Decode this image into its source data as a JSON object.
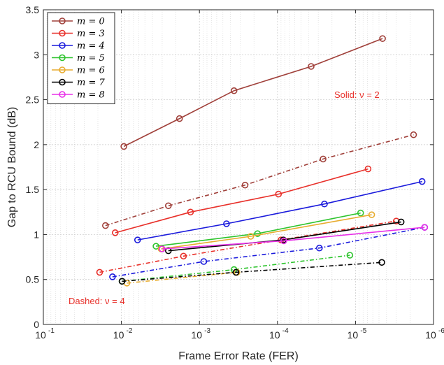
{
  "chart_data": {
    "type": "line",
    "xlabel": "Frame Error Rate (FER)",
    "ylabel": "Gap to RCU Bound (dB)",
    "x_scale": "log",
    "x_reversed": true,
    "xlim": [
      0.1,
      1e-06
    ],
    "ylim": [
      0,
      3.5
    ],
    "x_ticks": [
      {
        "value": 0.1,
        "label": "10"
      },
      {
        "value": 0.01,
        "label": "10"
      },
      {
        "value": 0.001,
        "label": "10"
      },
      {
        "value": 0.0001,
        "label": "10"
      },
      {
        "value": 1e-05,
        "label": "10"
      },
      {
        "value": 1e-06,
        "label": "10"
      }
    ],
    "x_tick_exponents": [
      "-1",
      "-2",
      "-3",
      "-4",
      "-5",
      "-6"
    ],
    "y_ticks": [
      {
        "value": 0,
        "label": "0"
      },
      {
        "value": 0.5,
        "label": "0.5"
      },
      {
        "value": 1,
        "label": "1"
      },
      {
        "value": 1.5,
        "label": "1.5"
      },
      {
        "value": 2,
        "label": "2"
      },
      {
        "value": 2.5,
        "label": "2.5"
      },
      {
        "value": 3,
        "label": "3"
      },
      {
        "value": 3.5,
        "label": "3.5"
      }
    ],
    "grid": true,
    "legend_position": "top-left",
    "legend": [
      {
        "label": "m = 0",
        "color": "#a0403a"
      },
      {
        "label": "m = 3",
        "color": "#e8302a"
      },
      {
        "label": "m = 4",
        "color": "#1a1adc"
      },
      {
        "label": "m = 5",
        "color": "#2ec42e"
      },
      {
        "label": "m = 6",
        "color": "#e8ac2e"
      },
      {
        "label": "m = 7",
        "color": "#000000"
      },
      {
        "label": "m = 8",
        "color": "#e830e8"
      }
    ],
    "annotations": [
      {
        "text": "Solid: ν = 2",
        "color": "#e8302a"
      },
      {
        "text": "Dashed: ν = 4",
        "color": "#e8302a"
      }
    ],
    "series": [
      {
        "m": 0,
        "nu": 2,
        "style": "solid",
        "color": "#a0403a",
        "x": [
          0.0093,
          0.0018,
          0.00036,
          3.7e-05,
          4.5e-06
        ],
        "y": [
          1.98,
          2.29,
          2.6,
          2.87,
          3.18
        ]
      },
      {
        "m": 0,
        "nu": 4,
        "style": "dashed",
        "color": "#a0403a",
        "x": [
          0.016,
          0.0025,
          0.00026,
          2.6e-05,
          1.8e-06
        ],
        "y": [
          1.1,
          1.32,
          1.55,
          1.84,
          2.11
        ]
      },
      {
        "m": 3,
        "nu": 2,
        "style": "solid",
        "color": "#e8302a",
        "x": [
          0.012,
          0.0013,
          9.7e-05,
          6.9e-06
        ],
        "y": [
          1.02,
          1.25,
          1.45,
          1.73
        ]
      },
      {
        "m": 3,
        "nu": 4,
        "style": "dashed",
        "color": "#e8302a",
        "x": [
          0.019,
          0.0016,
          9e-05,
          3e-06
        ],
        "y": [
          0.58,
          0.76,
          0.94,
          1.15
        ]
      },
      {
        "m": 4,
        "nu": 2,
        "style": "solid",
        "color": "#1a1adc",
        "x": [
          0.0062,
          0.00045,
          2.5e-05,
          1.4e-06
        ],
        "y": [
          0.94,
          1.12,
          1.34,
          1.59
        ]
      },
      {
        "m": 4,
        "nu": 4,
        "style": "dashed",
        "color": "#1a1adc",
        "x": [
          0.013,
          0.00088,
          2.9e-05,
          1.3e-06
        ],
        "y": [
          0.53,
          0.7,
          0.85,
          1.08
        ]
      },
      {
        "m": 5,
        "nu": 2,
        "style": "solid",
        "color": "#2ec42e",
        "x": [
          0.0036,
          0.00018,
          8.6e-06
        ],
        "y": [
          0.87,
          1.01,
          1.24
        ]
      },
      {
        "m": 5,
        "nu": 4,
        "style": "dashed",
        "color": "#2ec42e",
        "x": [
          0.0098,
          0.00036,
          1.18e-05
        ],
        "y": [
          0.48,
          0.61,
          0.77
        ]
      },
      {
        "m": 6,
        "nu": 2,
        "style": "solid",
        "color": "#e8ac2e",
        "x": [
          0.0031,
          0.00022,
          6.2e-06
        ],
        "y": [
          0.84,
          0.98,
          1.22
        ]
      },
      {
        "m": 6,
        "nu": 4,
        "style": "dashed",
        "color": "#e8ac2e",
        "x": [
          0.0085,
          0.00033
        ],
        "y": [
          0.46,
          0.58
        ]
      },
      {
        "m": 7,
        "nu": 2,
        "style": "solid",
        "color": "#000000",
        "x": [
          0.0025,
          8.4e-05,
          2.6e-06
        ],
        "y": [
          0.82,
          0.94,
          1.14
        ]
      },
      {
        "m": 7,
        "nu": 4,
        "style": "dashed",
        "color": "#000000",
        "x": [
          0.0098,
          0.00034,
          4.6e-06
        ],
        "y": [
          0.48,
          0.58,
          0.69
        ]
      },
      {
        "m": 8,
        "nu": 2,
        "style": "solid",
        "color": "#e830e8",
        "x": [
          0.003,
          8.3e-05,
          1.3e-06
        ],
        "y": [
          0.84,
          0.93,
          1.08
        ]
      }
    ]
  }
}
